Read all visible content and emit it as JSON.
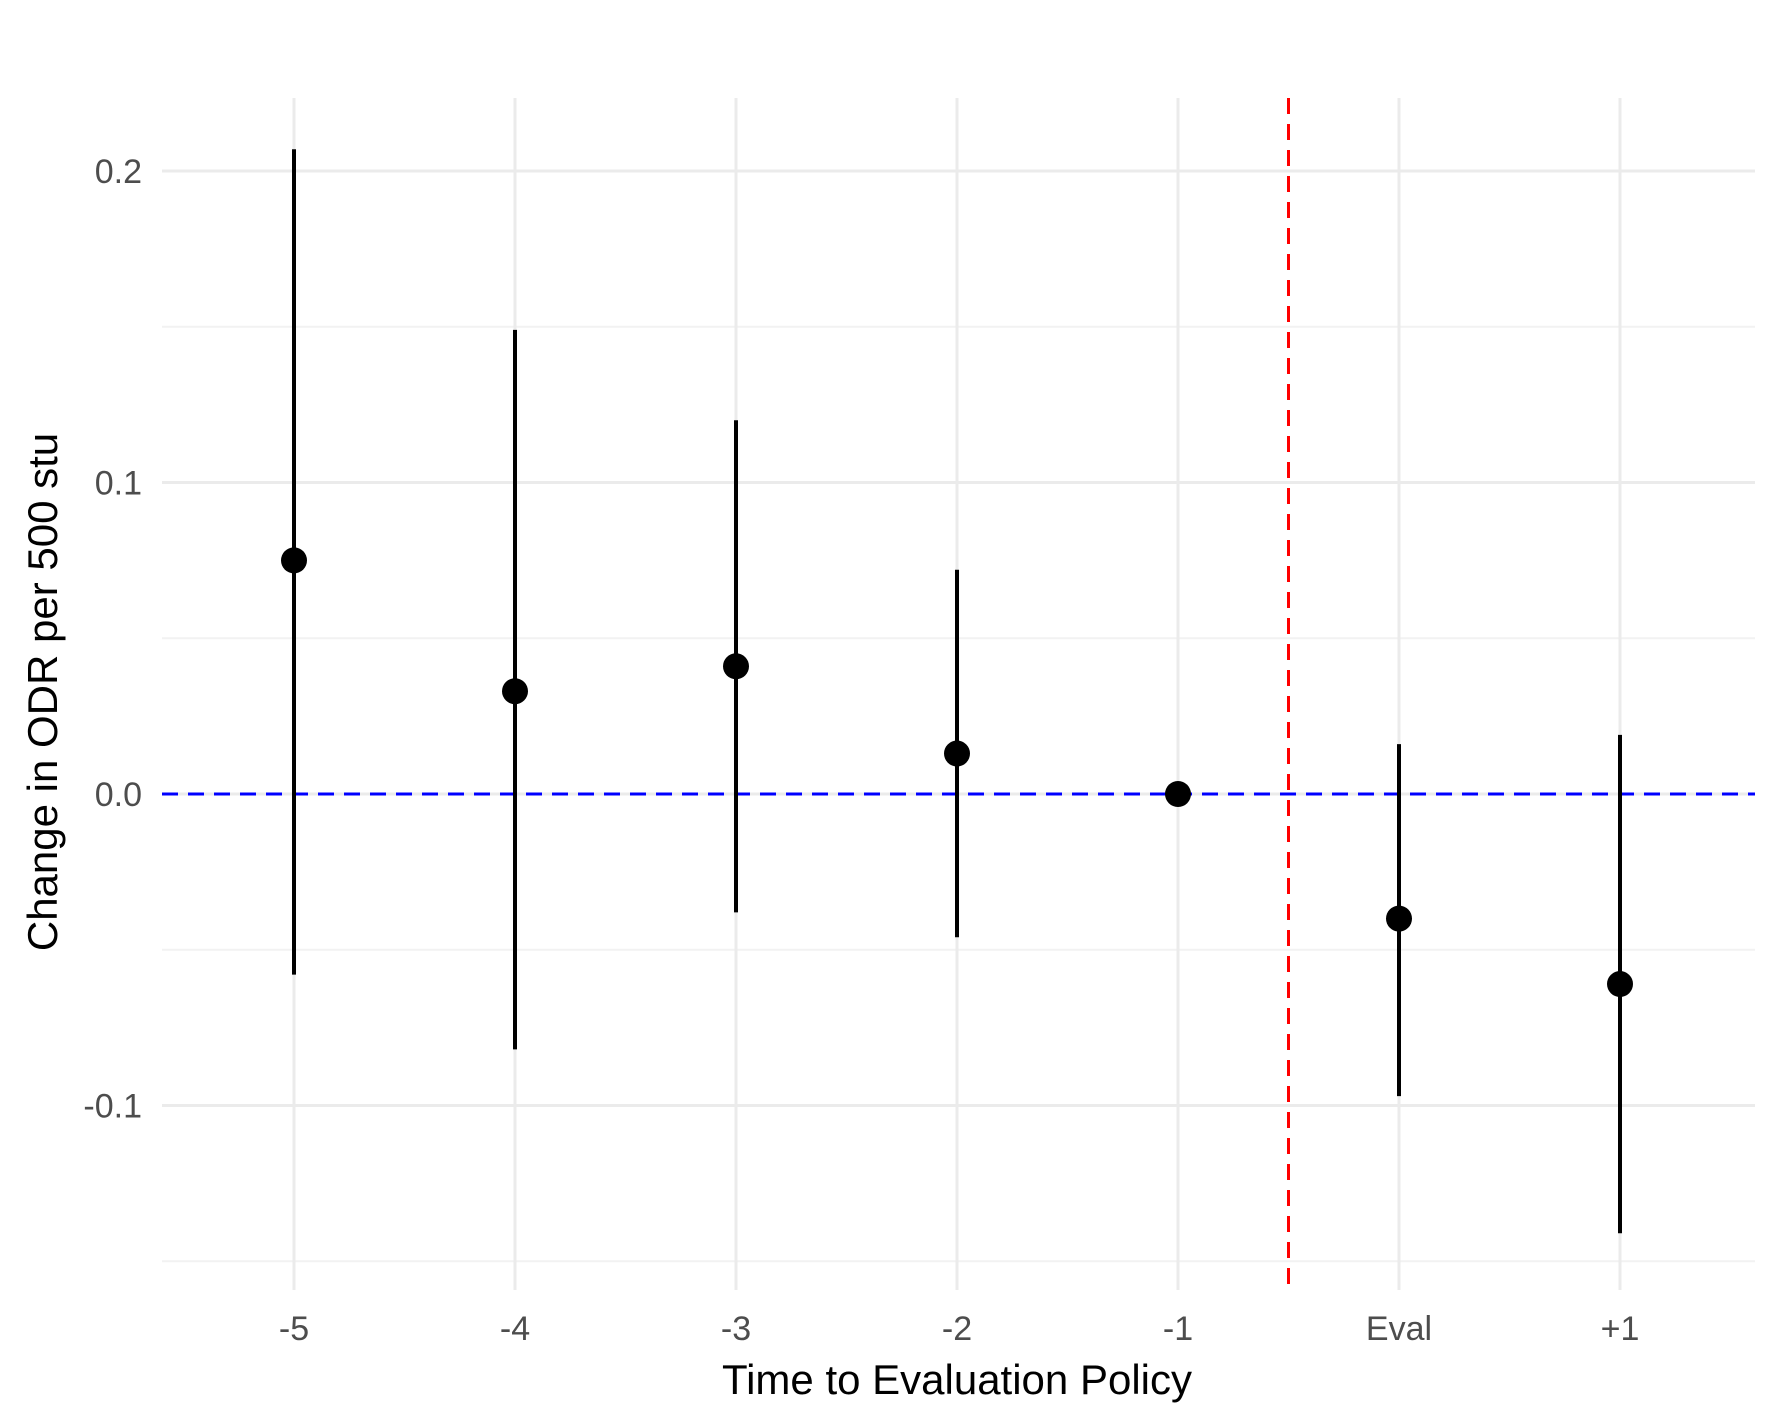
{
  "chart_data": {
    "type": "scatter",
    "subtype": "point-with-error-bars",
    "title": "",
    "xlabel": "Time to Evaluation Policy",
    "ylabel": "Change in ODR per 500 stu",
    "categories": [
      "-5",
      "-4",
      "-3",
      "-2",
      "-1",
      "Eval",
      "+1"
    ],
    "points": [
      {
        "x": "-5",
        "estimate": 0.075,
        "lower": -0.058,
        "upper": 0.207
      },
      {
        "x": "-4",
        "estimate": 0.033,
        "lower": -0.082,
        "upper": 0.149
      },
      {
        "x": "-3",
        "estimate": 0.041,
        "lower": -0.038,
        "upper": 0.12
      },
      {
        "x": "-2",
        "estimate": 0.013,
        "lower": -0.046,
        "upper": 0.072
      },
      {
        "x": "-1",
        "estimate": 0.0,
        "lower": 0.0,
        "upper": 0.0
      },
      {
        "x": "Eval",
        "estimate": -0.04,
        "lower": -0.097,
        "upper": 0.016
      },
      {
        "x": "+1",
        "estimate": -0.061,
        "lower": -0.141,
        "upper": 0.019
      }
    ],
    "y_ticks": [
      {
        "value": 0.2,
        "label": "0.2"
      },
      {
        "value": 0.1,
        "label": "0.1"
      },
      {
        "value": 0.0,
        "label": "0.0"
      },
      {
        "value": -0.1,
        "label": "-0.1"
      }
    ],
    "y_minor_gridlines": [
      0.15,
      0.05,
      -0.05,
      -0.15
    ],
    "ylim": [
      -0.155,
      0.225
    ],
    "reference_lines": [
      {
        "orientation": "horizontal",
        "value": 0.0,
        "style": "dashed",
        "color": "#0000ff"
      },
      {
        "orientation": "vertical",
        "between": [
          "-1",
          "Eval"
        ],
        "style": "dashed",
        "color": "#ff0000"
      }
    ],
    "grid": true,
    "legend": "none",
    "colors": {
      "points": "#000000",
      "error_bars": "#000000",
      "grid_major": "#ebebeb",
      "grid_minor": "#f2f2f2",
      "tick_text": "#4d4d4d",
      "axis_title": "#000000"
    }
  }
}
